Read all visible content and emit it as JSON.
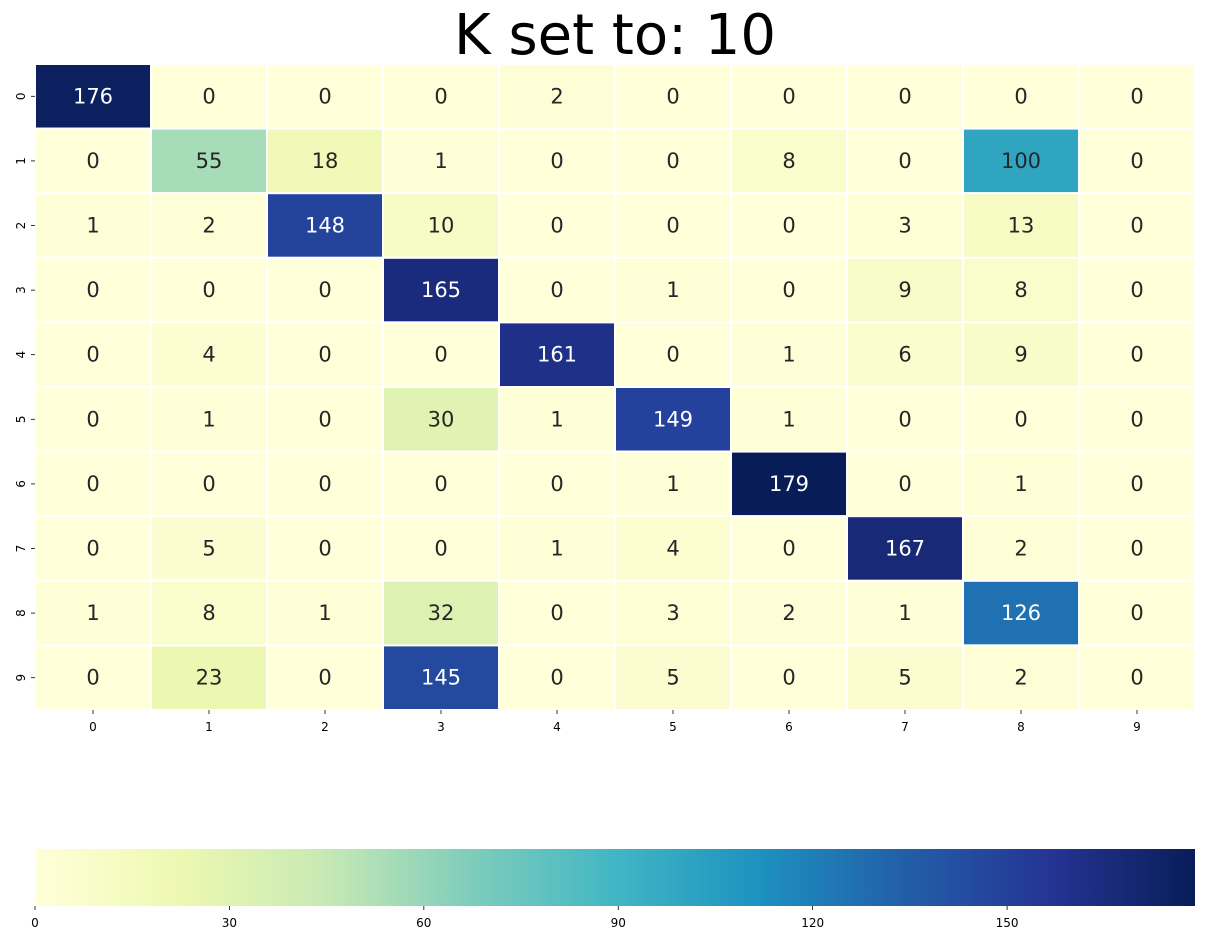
{
  "chart_data": {
    "type": "heatmap",
    "title": "K set to: 10",
    "xlabel": "",
    "ylabel": "",
    "x_categories": [
      "0",
      "1",
      "2",
      "3",
      "4",
      "5",
      "6",
      "7",
      "8",
      "9"
    ],
    "y_categories": [
      "0",
      "1",
      "2",
      "3",
      "4",
      "5",
      "6",
      "7",
      "8",
      "9"
    ],
    "values": [
      [
        176,
        0,
        0,
        0,
        2,
        0,
        0,
        0,
        0,
        0
      ],
      [
        0,
        55,
        18,
        1,
        0,
        0,
        8,
        0,
        100,
        0
      ],
      [
        1,
        2,
        148,
        10,
        0,
        0,
        0,
        3,
        13,
        0
      ],
      [
        0,
        0,
        0,
        165,
        0,
        1,
        0,
        9,
        8,
        0
      ],
      [
        0,
        4,
        0,
        0,
        161,
        0,
        1,
        6,
        9,
        0
      ],
      [
        0,
        1,
        0,
        30,
        1,
        149,
        1,
        0,
        0,
        0
      ],
      [
        0,
        0,
        0,
        0,
        0,
        1,
        179,
        0,
        1,
        0
      ],
      [
        0,
        5,
        0,
        0,
        1,
        4,
        0,
        167,
        2,
        0
      ],
      [
        1,
        8,
        1,
        32,
        0,
        3,
        2,
        1,
        126,
        0
      ],
      [
        0,
        23,
        0,
        145,
        0,
        5,
        0,
        5,
        2,
        0
      ]
    ],
    "colormap": "YlGnBu",
    "colorbar": {
      "orientation": "horizontal",
      "placement": "bottom",
      "range": [
        0,
        179
      ],
      "ticks": [
        0,
        30,
        60,
        90,
        120,
        150
      ]
    },
    "grid": false
  }
}
